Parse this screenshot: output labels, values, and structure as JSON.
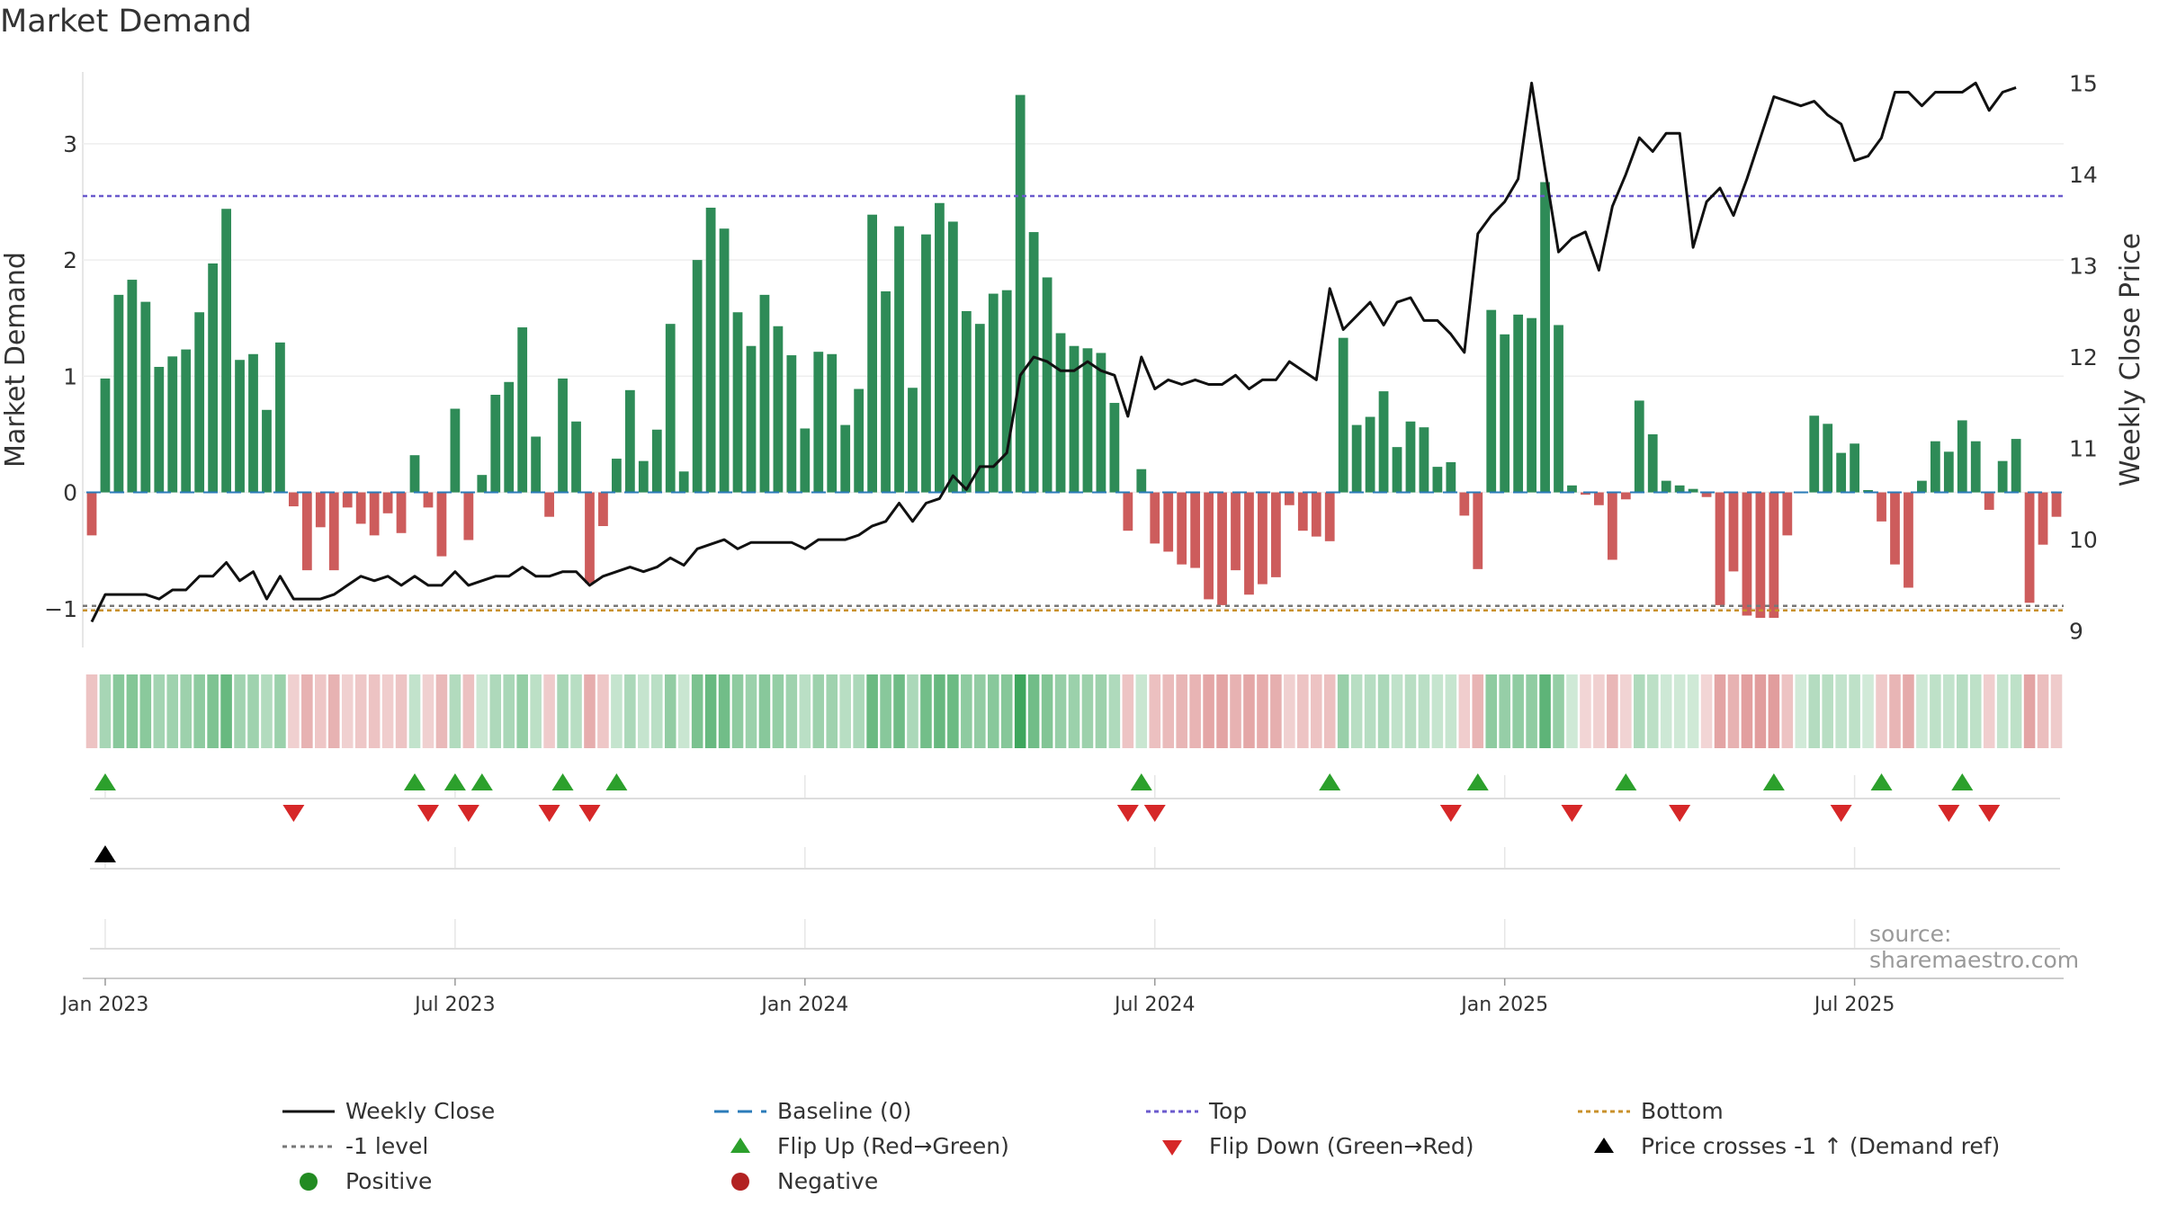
{
  "title": "Market Demand",
  "source": "source: sharemaestro.com",
  "chart_data": {
    "type": "bar+line",
    "y_left_label": "Market Demand",
    "y_right_label": "Weekly Close Price",
    "y_left_ticks": [
      "−1",
      "0",
      "1",
      "2",
      "3"
    ],
    "y_left_tick_values": [
      -1,
      0,
      1,
      2,
      3
    ],
    "y_right_ticks": [
      "9",
      "10",
      "11",
      "12",
      "13",
      "14",
      "15"
    ],
    "y_right_tick_values": [
      9,
      10,
      11,
      12,
      13,
      14,
      15
    ],
    "ylim_left": [
      -1.35,
      3.68
    ],
    "ylim_right": [
      8.8,
      15.2
    ],
    "x_ticks": [
      "Jan 2023",
      "Jul 2023",
      "Jan 2024",
      "Jul 2024",
      "Jan 2025",
      "Jul 2025"
    ],
    "x_tick_week_index": [
      1,
      27,
      53,
      79,
      105,
      131
    ],
    "top_level": 2.55,
    "bottom_level": -1.0,
    "demand": [
      -0.37,
      0.98,
      1.7,
      1.83,
      1.64,
      1.08,
      1.17,
      1.23,
      1.55,
      1.97,
      2.44,
      1.14,
      1.19,
      0.71,
      1.29,
      -0.12,
      -0.67,
      -0.3,
      -0.67,
      -0.13,
      -0.27,
      -0.37,
      -0.18,
      -0.35,
      0.32,
      -0.13,
      -0.55,
      0.72,
      -0.41,
      0.15,
      0.84,
      0.95,
      1.42,
      0.48,
      -0.21,
      0.98,
      0.61,
      -0.78,
      -0.29,
      0.29,
      0.88,
      0.27,
      0.54,
      1.45,
      0.18,
      2.0,
      2.45,
      2.27,
      1.55,
      1.26,
      1.7,
      1.43,
      1.18,
      0.55,
      1.21,
      1.19,
      0.58,
      0.89,
      2.39,
      1.73,
      2.29,
      0.9,
      2.22,
      2.49,
      2.33,
      1.56,
      1.45,
      1.71,
      1.74,
      3.42,
      2.24,
      1.85,
      1.37,
      1.26,
      1.24,
      1.2,
      0.77,
      -0.33,
      0.2,
      -0.44,
      -0.51,
      -0.62,
      -0.65,
      -0.92,
      -0.97,
      -0.67,
      -0.88,
      -0.79,
      -0.73,
      -0.11,
      -0.33,
      -0.38,
      -0.42,
      1.33,
      0.58,
      0.65,
      0.87,
      0.39,
      0.61,
      0.56,
      0.22,
      0.26,
      -0.2,
      -0.66,
      1.57,
      1.36,
      1.53,
      1.5,
      2.67,
      1.44,
      0.06,
      -0.02,
      -0.11,
      -0.58,
      -0.06,
      0.79,
      0.5,
      0.1,
      0.06,
      0.03,
      -0.04,
      -0.97,
      -0.68,
      -1.06,
      -1.08,
      -1.08,
      -0.37,
      0.0,
      0.66,
      0.59,
      0.34,
      0.42,
      0.02,
      -0.25,
      -0.62,
      -0.82,
      0.1,
      0.44,
      0.35,
      0.62,
      0.44,
      -0.15,
      0.27,
      0.46,
      -0.95,
      -0.45,
      -0.21
    ],
    "weekly_close": [
      9.1,
      9.4,
      9.4,
      9.4,
      9.4,
      9.35,
      9.45,
      9.45,
      9.6,
      9.6,
      9.75,
      9.55,
      9.65,
      9.35,
      9.6,
      9.35,
      9.35,
      9.35,
      9.4,
      9.5,
      9.6,
      9.55,
      9.6,
      9.5,
      9.6,
      9.5,
      9.5,
      9.65,
      9.5,
      9.55,
      9.6,
      9.6,
      9.7,
      9.6,
      9.6,
      9.65,
      9.65,
      9.5,
      9.6,
      9.65,
      9.7,
      9.65,
      9.7,
      9.8,
      9.72,
      9.9,
      9.95,
      10.0,
      9.9,
      9.97,
      9.97,
      9.97,
      9.97,
      9.9,
      10.0,
      10.0,
      10.0,
      10.05,
      10.15,
      10.2,
      10.4,
      10.2,
      10.4,
      10.45,
      10.7,
      10.55,
      10.8,
      10.8,
      10.95,
      11.8,
      12.0,
      11.95,
      11.85,
      11.85,
      11.95,
      11.85,
      11.8,
      11.35,
      12.0,
      11.65,
      11.75,
      11.7,
      11.75,
      11.7,
      11.7,
      11.8,
      11.65,
      11.75,
      11.75,
      11.95,
      11.85,
      11.75,
      12.75,
      12.3,
      12.45,
      12.6,
      12.35,
      12.6,
      12.65,
      12.4,
      12.4,
      12.25,
      12.05,
      13.35,
      13.55,
      13.7,
      13.95,
      15.0,
      14.05,
      13.15,
      13.3,
      13.37,
      12.95,
      13.65,
      14.0,
      14.4,
      14.25,
      14.45,
      14.45,
      13.2,
      13.7,
      13.85,
      13.55,
      13.95,
      14.4,
      14.85,
      14.8,
      14.75,
      14.8,
      14.65,
      14.55,
      14.15,
      14.2,
      14.4,
      14.9,
      14.9,
      14.75,
      14.9,
      14.9,
      14.9,
      15.0,
      14.7,
      14.9,
      14.95
    ],
    "flip_up_weeks": [
      1,
      24,
      27,
      29,
      35,
      39,
      78,
      92,
      103,
      114,
      125,
      133,
      139
    ],
    "flip_down_weeks": [
      15,
      25,
      28,
      34,
      37,
      77,
      79,
      101,
      110,
      118,
      130,
      138,
      141
    ],
    "price_cross_weeks": [
      1
    ],
    "legend": [
      "Weekly Close",
      "Baseline (0)",
      "Top",
      "Bottom",
      "-1 level",
      "Flip Up (Red→Green)",
      "Flip Down (Green→Red)",
      "Price crosses -1 ↑ (Demand ref)",
      "Positive",
      "Negative"
    ]
  },
  "colors": {
    "positive": "#2e8b57",
    "negative": "#cd5c5c",
    "line": "#111111",
    "top": "#6a5acd",
    "bottom": "#c8902a",
    "baseline": "#2b7bb9",
    "minus_one": "#777777",
    "flip_up": "#2ca02c",
    "flip_down": "#d62728",
    "positive_dot": "#228b22",
    "negative_dot": "#b22222"
  }
}
